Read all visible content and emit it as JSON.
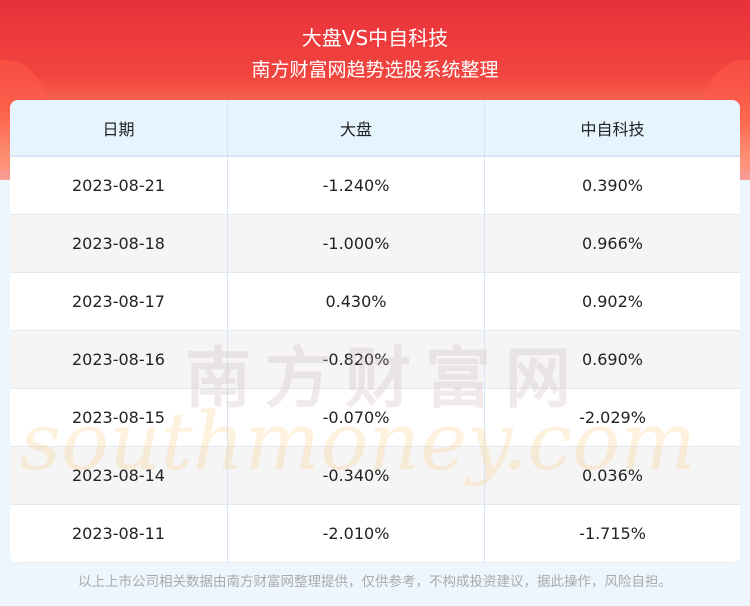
{
  "header": {
    "title": "大盘VS中自科技",
    "subtitle": "南方财富网趋势选股系统整理"
  },
  "table": {
    "columns": [
      "日期",
      "大盘",
      "中自科技"
    ],
    "rows": [
      [
        "2023-08-21",
        "-1.240%",
        "0.390%"
      ],
      [
        "2023-08-18",
        "-1.000%",
        "0.966%"
      ],
      [
        "2023-08-17",
        "0.430%",
        "0.902%"
      ],
      [
        "2023-08-16",
        "-0.820%",
        "0.690%"
      ],
      [
        "2023-08-15",
        "-0.070%",
        "-2.029%"
      ],
      [
        "2023-08-14",
        "-0.340%",
        "0.036%"
      ],
      [
        "2023-08-11",
        "-2.010%",
        "-1.715%"
      ]
    ]
  },
  "watermark": {
    "cn": "南方财富网",
    "en": "southmoney.com"
  },
  "footer": "以上上市公司相关数据由南方财富网整理提供，仅供参考，不构成投资建议，据此操作，风险自担。"
}
